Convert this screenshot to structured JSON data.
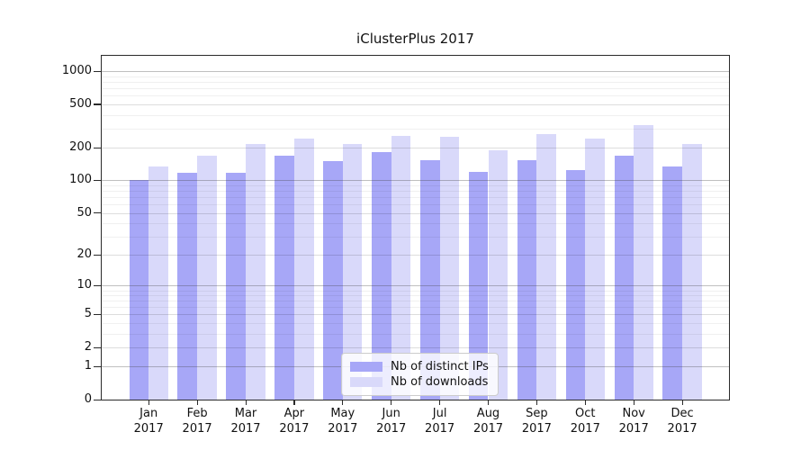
{
  "chart_data": {
    "type": "bar",
    "title": "iClusterPlus 2017",
    "categories": [
      "Jan 2017",
      "Feb 2017",
      "Mar 2017",
      "Apr 2017",
      "May 2017",
      "Jun 2017",
      "Jul 2017",
      "Aug 2017",
      "Sep 2017",
      "Oct 2017",
      "Nov 2017",
      "Dec 2017"
    ],
    "series": [
      {
        "name": "Nb of distinct IPs",
        "color": "#a7a7f7",
        "values": [
          100,
          118,
          118,
          168,
          150,
          182,
          153,
          120,
          153,
          125,
          170,
          134
        ]
      },
      {
        "name": "Nb of downloads",
        "color": "#d9d9fa",
        "values": [
          135,
          168,
          216,
          243,
          216,
          258,
          253,
          190,
          268,
          243,
          325,
          218
        ]
      }
    ],
    "y_ticks": [
      0,
      1,
      2,
      5,
      10,
      20,
      50,
      100,
      200,
      500,
      1000
    ],
    "y_scale": "log10(1+x)",
    "ylim": [
      0,
      1400
    ],
    "xlabel": "",
    "ylabel": "",
    "grid": "horizontal",
    "legend_position": "inside lower-center"
  }
}
